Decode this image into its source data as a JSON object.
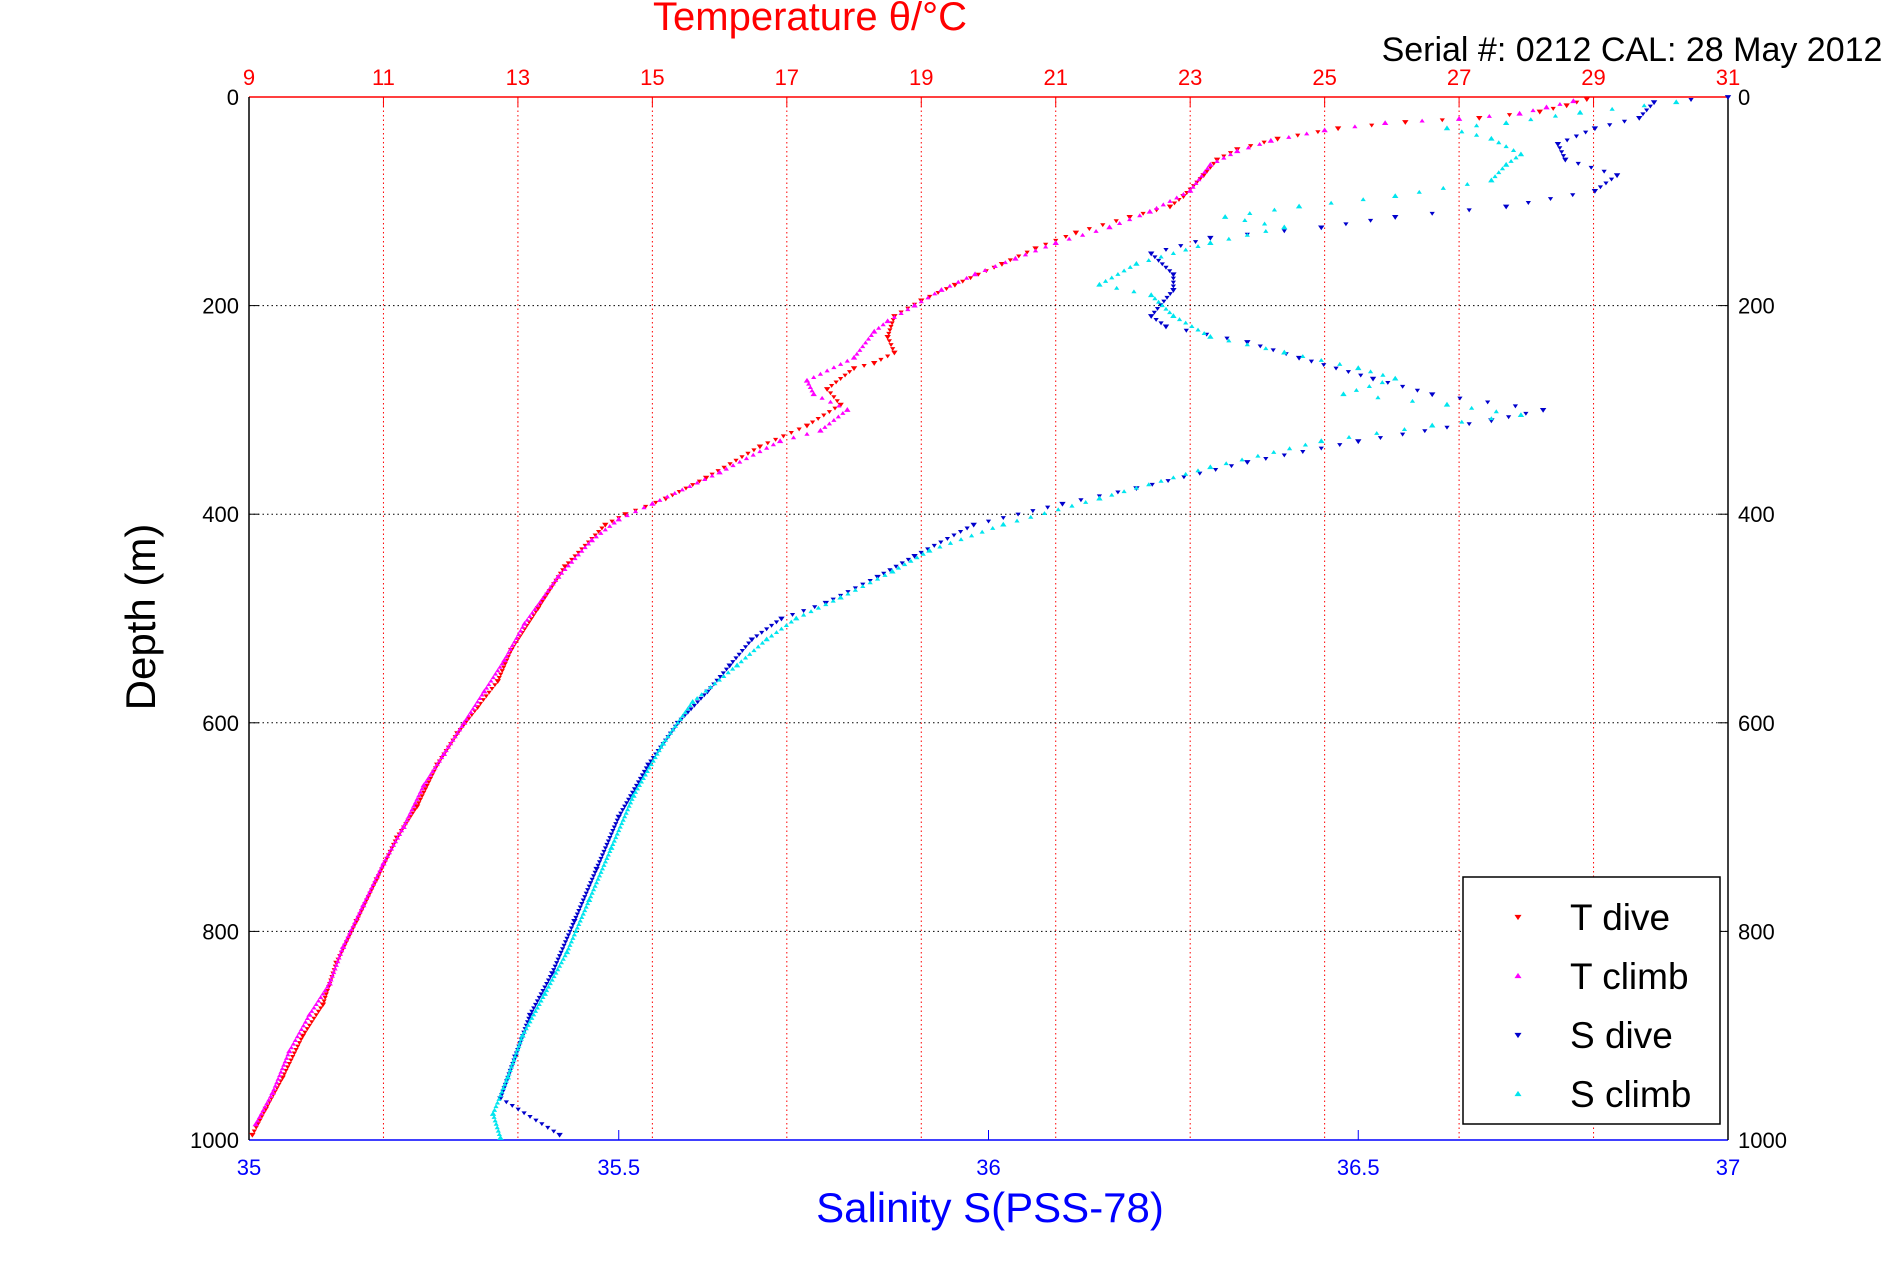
{
  "chart_data": {
    "type": "scatter",
    "title": "Temperature θ/°C",
    "subtitle": "Serial #: 0212  CAL: 28 May 2012",
    "xlabel": "Salinity S(PSS-78)",
    "ylabel": "Depth (m)",
    "x_bottom": {
      "label": "Salinity S(PSS-78)",
      "range": [
        35,
        37
      ],
      "ticks": [
        "35",
        "35.5",
        "36",
        "36.5",
        "37"
      ],
      "color": "#0000ff"
    },
    "x_top": {
      "label": "Temperature θ/°C",
      "range": [
        9,
        31
      ],
      "ticks": [
        "9",
        "11",
        "13",
        "15",
        "17",
        "19",
        "21",
        "23",
        "25",
        "27",
        "29",
        "31"
      ],
      "color": "#ff0000"
    },
    "y": {
      "label": "Depth (m)",
      "range": [
        0,
        1000
      ],
      "reversed": true,
      "ticks": [
        "0",
        "200",
        "400",
        "600",
        "800",
        "1000"
      ]
    },
    "grid": {
      "x_top": true,
      "y": true,
      "style": "dotted"
    },
    "legend_position": "bottom-right",
    "series": [
      {
        "name": "T dive",
        "axis": "temperature",
        "marker": "triangle-down",
        "color": "#ff0000",
        "points": [
          [
            28.9,
            2
          ],
          [
            28.6,
            8
          ],
          [
            28.2,
            14
          ],
          [
            27.3,
            20
          ],
          [
            26.2,
            24
          ],
          [
            25.2,
            30
          ],
          [
            24.3,
            40
          ],
          [
            23.7,
            50
          ],
          [
            23.4,
            60
          ],
          [
            23.2,
            75
          ],
          [
            22.9,
            95
          ],
          [
            22.7,
            105
          ],
          [
            22.1,
            115
          ],
          [
            21.3,
            130
          ],
          [
            20.7,
            145
          ],
          [
            20.2,
            160
          ],
          [
            19.5,
            180
          ],
          [
            19.0,
            195
          ],
          [
            18.6,
            210
          ],
          [
            18.5,
            230
          ],
          [
            18.6,
            245
          ],
          [
            18.3,
            255
          ],
          [
            18.0,
            260
          ],
          [
            17.6,
            280
          ],
          [
            17.8,
            295
          ],
          [
            17.3,
            315
          ],
          [
            16.6,
            335
          ],
          [
            15.8,
            365
          ],
          [
            15.2,
            385
          ],
          [
            14.6,
            400
          ],
          [
            14.3,
            410
          ],
          [
            13.7,
            450
          ],
          [
            13.3,
            490
          ],
          [
            12.9,
            530
          ],
          [
            12.7,
            560
          ],
          [
            12.4,
            585
          ],
          [
            12.1,
            610
          ],
          [
            11.8,
            640
          ],
          [
            11.5,
            680
          ],
          [
            11.2,
            710
          ],
          [
            10.9,
            750
          ],
          [
            10.6,
            790
          ],
          [
            10.3,
            830
          ],
          [
            10.1,
            870
          ],
          [
            9.8,
            900
          ],
          [
            9.5,
            940
          ],
          [
            9.25,
            970
          ],
          [
            9.05,
            995
          ]
        ]
      },
      {
        "name": "T climb",
        "axis": "temperature",
        "marker": "triangle-up",
        "color": "#ff00ff",
        "points": [
          [
            28.7,
            4
          ],
          [
            28.3,
            10
          ],
          [
            27.9,
            16
          ],
          [
            27.0,
            21
          ],
          [
            25.9,
            25
          ],
          [
            25.0,
            32
          ],
          [
            24.2,
            42
          ],
          [
            23.7,
            52
          ],
          [
            23.3,
            65
          ],
          [
            23.0,
            90
          ],
          [
            22.4,
            110
          ],
          [
            21.8,
            125
          ],
          [
            21.0,
            140
          ],
          [
            20.4,
            155
          ],
          [
            19.8,
            170
          ],
          [
            19.3,
            185
          ],
          [
            18.9,
            200
          ],
          [
            18.5,
            215
          ],
          [
            18.3,
            225
          ],
          [
            18.0,
            250
          ],
          [
            17.3,
            272
          ],
          [
            17.4,
            285
          ],
          [
            17.9,
            300
          ],
          [
            17.5,
            320
          ],
          [
            16.9,
            330
          ],
          [
            16.0,
            360
          ],
          [
            15.0,
            390
          ],
          [
            14.5,
            405
          ],
          [
            14.1,
            425
          ],
          [
            13.6,
            460
          ],
          [
            13.1,
            505
          ],
          [
            12.8,
            540
          ],
          [
            12.5,
            570
          ],
          [
            12.2,
            600
          ],
          [
            11.9,
            630
          ],
          [
            11.6,
            660
          ],
          [
            11.3,
            700
          ],
          [
            11.0,
            735
          ],
          [
            10.7,
            775
          ],
          [
            10.4,
            815
          ],
          [
            10.2,
            850
          ],
          [
            9.9,
            880
          ],
          [
            9.6,
            915
          ],
          [
            9.35,
            955
          ],
          [
            9.1,
            985
          ]
        ]
      },
      {
        "name": "S dive",
        "axis": "salinity",
        "marker": "triangle-down",
        "color": "#0000cc",
        "points": [
          [
            37.0,
            0
          ],
          [
            36.9,
            5
          ],
          [
            36.88,
            20
          ],
          [
            36.82,
            30
          ],
          [
            36.77,
            45
          ],
          [
            36.78,
            60
          ],
          [
            36.85,
            75
          ],
          [
            36.82,
            90
          ],
          [
            36.7,
            105
          ],
          [
            36.55,
            115
          ],
          [
            36.45,
            125
          ],
          [
            36.3,
            135
          ],
          [
            36.22,
            150
          ],
          [
            36.25,
            170
          ],
          [
            36.25,
            185
          ],
          [
            36.22,
            210
          ],
          [
            36.24,
            220
          ],
          [
            36.35,
            235
          ],
          [
            36.42,
            250
          ],
          [
            36.52,
            270
          ],
          [
            36.6,
            285
          ],
          [
            36.75,
            300
          ],
          [
            36.68,
            310
          ],
          [
            36.5,
            330
          ],
          [
            36.35,
            350
          ],
          [
            36.2,
            375
          ],
          [
            36.1,
            390
          ],
          [
            35.98,
            410
          ],
          [
            35.9,
            440
          ],
          [
            35.85,
            460
          ],
          [
            35.78,
            485
          ],
          [
            35.72,
            500
          ],
          [
            35.68,
            520
          ],
          [
            35.65,
            545
          ],
          [
            35.62,
            570
          ],
          [
            35.58,
            600
          ],
          [
            35.54,
            640
          ],
          [
            35.5,
            690
          ],
          [
            35.47,
            740
          ],
          [
            35.44,
            790
          ],
          [
            35.41,
            840
          ],
          [
            35.38,
            880
          ],
          [
            35.36,
            920
          ],
          [
            35.34,
            960
          ],
          [
            35.42,
            995
          ]
        ]
      },
      {
        "name": "S climb",
        "axis": "salinity",
        "marker": "triangle-up",
        "color": "#00e5ee",
        "points": [
          [
            36.93,
            5
          ],
          [
            36.8,
            15
          ],
          [
            36.7,
            25
          ],
          [
            36.62,
            30
          ],
          [
            36.68,
            40
          ],
          [
            36.72,
            55
          ],
          [
            36.7,
            65
          ],
          [
            36.68,
            80
          ],
          [
            36.55,
            95
          ],
          [
            36.42,
            105
          ],
          [
            36.32,
            115
          ],
          [
            36.4,
            125
          ],
          [
            36.3,
            140
          ],
          [
            36.2,
            160
          ],
          [
            36.15,
            180
          ],
          [
            36.22,
            190
          ],
          [
            36.25,
            210
          ],
          [
            36.3,
            230
          ],
          [
            36.4,
            245
          ],
          [
            36.5,
            260
          ],
          [
            36.55,
            270
          ],
          [
            36.48,
            285
          ],
          [
            36.62,
            295
          ],
          [
            36.72,
            305
          ],
          [
            36.6,
            315
          ],
          [
            36.45,
            330
          ],
          [
            36.3,
            355
          ],
          [
            36.15,
            385
          ],
          [
            36.02,
            410
          ],
          [
            35.92,
            435
          ],
          [
            35.87,
            455
          ],
          [
            35.8,
            480
          ],
          [
            35.74,
            500
          ],
          [
            35.7,
            520
          ],
          [
            35.66,
            545
          ],
          [
            35.6,
            580
          ],
          [
            35.56,
            620
          ],
          [
            35.52,
            670
          ],
          [
            35.49,
            720
          ],
          [
            35.46,
            770
          ],
          [
            35.43,
            820
          ],
          [
            35.4,
            860
          ],
          [
            35.37,
            900
          ],
          [
            35.35,
            940
          ],
          [
            35.33,
            975
          ],
          [
            35.34,
            998
          ]
        ]
      }
    ]
  }
}
